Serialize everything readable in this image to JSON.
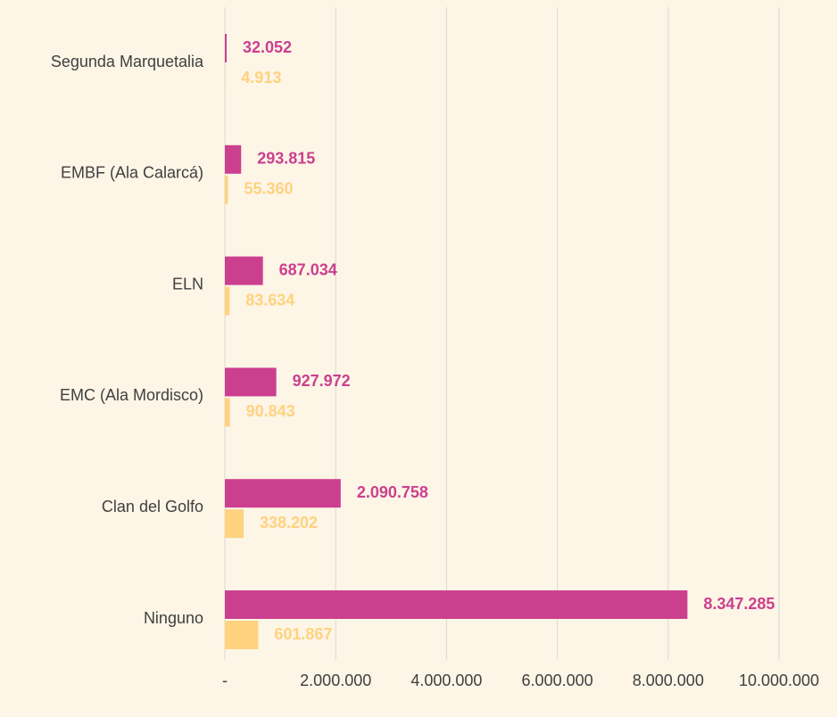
{
  "chart_data": {
    "type": "hbar",
    "categories": [
      "Segunda Marquetalia",
      "EMBF (Ala Calarcá)",
      "ELN",
      "EMC (Ala Mordisco)",
      "Clan del Golfo",
      "Ninguno"
    ],
    "series": [
      {
        "color": "#cc3f8f",
        "values": [
          32052,
          293815,
          687034,
          927972,
          2090758,
          8347285
        ],
        "value_labels": [
          "32.052",
          "293.815",
          "687.034",
          "927.972",
          "2.090.758",
          "8.347.285"
        ]
      },
      {
        "color": "#ffd27f",
        "values": [
          4913,
          55360,
          83634,
          90843,
          338202,
          601867
        ],
        "value_labels": [
          "4.913",
          "55.360",
          "83.634",
          "90.843",
          "338.202",
          "601.867"
        ]
      }
    ],
    "xlim": [
      0,
      10000000
    ],
    "xticks": [
      {
        "value": 0,
        "label": "-"
      },
      {
        "value": 2000000,
        "label": "2.000.000"
      },
      {
        "value": 4000000,
        "label": "4.000.000"
      },
      {
        "value": 6000000,
        "label": "6.000.000"
      },
      {
        "value": 8000000,
        "label": "8.000.000"
      },
      {
        "value": 10000000,
        "label": "10.000.000"
      }
    ],
    "grid": true
  }
}
